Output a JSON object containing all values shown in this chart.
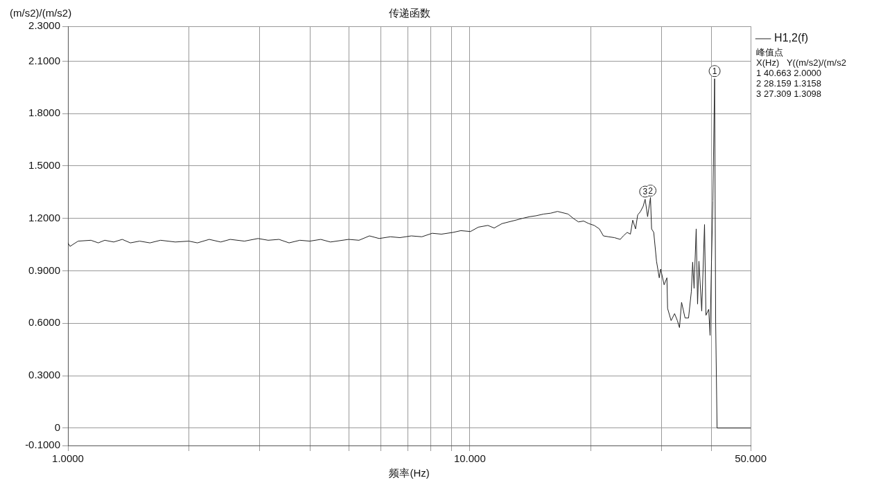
{
  "chart_data": {
    "type": "line",
    "title": "传递函数",
    "xlabel": "频率(Hz)",
    "ylabel": "(m/s2)/(m/s2)",
    "log": "x",
    "grid": true,
    "legend": "top right",
    "marker": "none",
    "line_style": "solid",
    "xlim": [
      1,
      50
    ],
    "xticks": [
      {
        "value": 1,
        "label": "1.0000"
      },
      {
        "value": 2,
        "label": null
      },
      {
        "value": 3,
        "label": null
      },
      {
        "value": 4,
        "label": null
      },
      {
        "value": 5,
        "label": null
      },
      {
        "value": 6,
        "label": null
      },
      {
        "value": 7,
        "label": null
      },
      {
        "value": 8,
        "label": null
      },
      {
        "value": 9,
        "label": null
      },
      {
        "value": 10,
        "label": "10.000"
      },
      {
        "value": 20,
        "label": null
      },
      {
        "value": 30,
        "label": null
      },
      {
        "value": 40,
        "label": null
      },
      {
        "value": 50,
        "label": "50.000"
      }
    ],
    "ylim": [
      -0.1,
      2.3
    ],
    "yticks": [
      {
        "value": -0.1,
        "label": "-0.1000"
      },
      {
        "value": 0,
        "label": "0"
      },
      {
        "value": 0.3,
        "label": "0.3000"
      },
      {
        "value": 0.6,
        "label": "0.6000"
      },
      {
        "value": 0.9,
        "label": "0.9000"
      },
      {
        "value": 1.2,
        "label": "1.2000"
      },
      {
        "value": 1.5,
        "label": "1.5000"
      },
      {
        "value": 1.8,
        "label": "1.8000"
      },
      {
        "value": 2.1,
        "label": "2.1000"
      },
      {
        "value": 2.3,
        "label": "2.3000"
      }
    ],
    "x": [
      1.0,
      1.012,
      1.06,
      1.141,
      1.19,
      1.235,
      1.3,
      1.365,
      1.43,
      1.508,
      1.6,
      1.7,
      1.85,
      2.0,
      2.1,
      2.247,
      2.4,
      2.534,
      2.75,
      2.972,
      3.15,
      3.351,
      3.55,
      3.777,
      4.0,
      4.257,
      4.5,
      4.994,
      5.3,
      5.628,
      5.95,
      6.345,
      6.7,
      7.152,
      7.6,
      8.062,
      8.5,
      9.087,
      9.5,
      10.04,
      10.5,
      11.09,
      11.5,
      12.02,
      12.5,
      13.01,
      13.5,
      14.09,
      14.6,
      15.27,
      15.9,
      16.53,
      17.56,
      18.1,
      18.64,
      19.2,
      19.79,
      20.4,
      21.01,
      21.5,
      22.13,
      22.9,
      23.68,
      24.1,
      24.64,
      25.1,
      25.44,
      25.85,
      26.17,
      26.6,
      27.01,
      27.309,
      27.7,
      28.159,
      28.34,
      28.69,
      29.15,
      29.61,
      29.85,
      30.45,
      30.94,
      31.06,
      31.69,
      32.33,
      32.85,
      33.25,
      33.65,
      34.33,
      35.02,
      35.58,
      35.86,
      36.15,
      36.59,
      36.88,
      37.17,
      37.77,
      38.38,
      38.69,
      39.31,
      39.62,
      39.94,
      40.26,
      40.663,
      40.91,
      41.24,
      50
    ],
    "series": [
      {
        "name": "H1,2(f)",
        "color": "#222222",
        "values": [
          1.06,
          1.04,
          1.07,
          1.075,
          1.06,
          1.075,
          1.065,
          1.08,
          1.06,
          1.07,
          1.06,
          1.075,
          1.065,
          1.07,
          1.06,
          1.08,
          1.065,
          1.08,
          1.07,
          1.085,
          1.075,
          1.08,
          1.06,
          1.075,
          1.07,
          1.08,
          1.065,
          1.08,
          1.075,
          1.1,
          1.085,
          1.095,
          1.09,
          1.1,
          1.095,
          1.115,
          1.11,
          1.12,
          1.13,
          1.125,
          1.15,
          1.16,
          1.145,
          1.17,
          1.18,
          1.19,
          1.2,
          1.21,
          1.215,
          1.225,
          1.23,
          1.24,
          1.225,
          1.2,
          1.18,
          1.185,
          1.17,
          1.16,
          1.14,
          1.1,
          1.095,
          1.09,
          1.08,
          1.1,
          1.12,
          1.11,
          1.19,
          1.14,
          1.22,
          1.24,
          1.27,
          1.31,
          1.21,
          1.32,
          1.14,
          1.12,
          0.955,
          0.86,
          0.91,
          0.82,
          0.86,
          0.685,
          0.615,
          0.655,
          0.615,
          0.575,
          0.72,
          0.63,
          0.63,
          0.78,
          0.95,
          0.8,
          1.14,
          0.71,
          0.955,
          0.67,
          1.165,
          0.645,
          0.68,
          0.53,
          0.95,
          1.3,
          2.0,
          0.6,
          0.0,
          0.0
        ]
      }
    ],
    "annotations": [
      {
        "text": "1",
        "x": 40.663,
        "y": 2.0
      },
      {
        "text": "2",
        "x": 28.159,
        "y": 1.3158
      },
      {
        "text": "3",
        "x": 27.309,
        "y": 1.3098
      },
      "峰值点",
      "X(Hz)   Y((m/s2)/(m/s2",
      "1 40.663 2.0000",
      "2 28.159 1.3158",
      "3 27.309 1.3098"
    ]
  }
}
